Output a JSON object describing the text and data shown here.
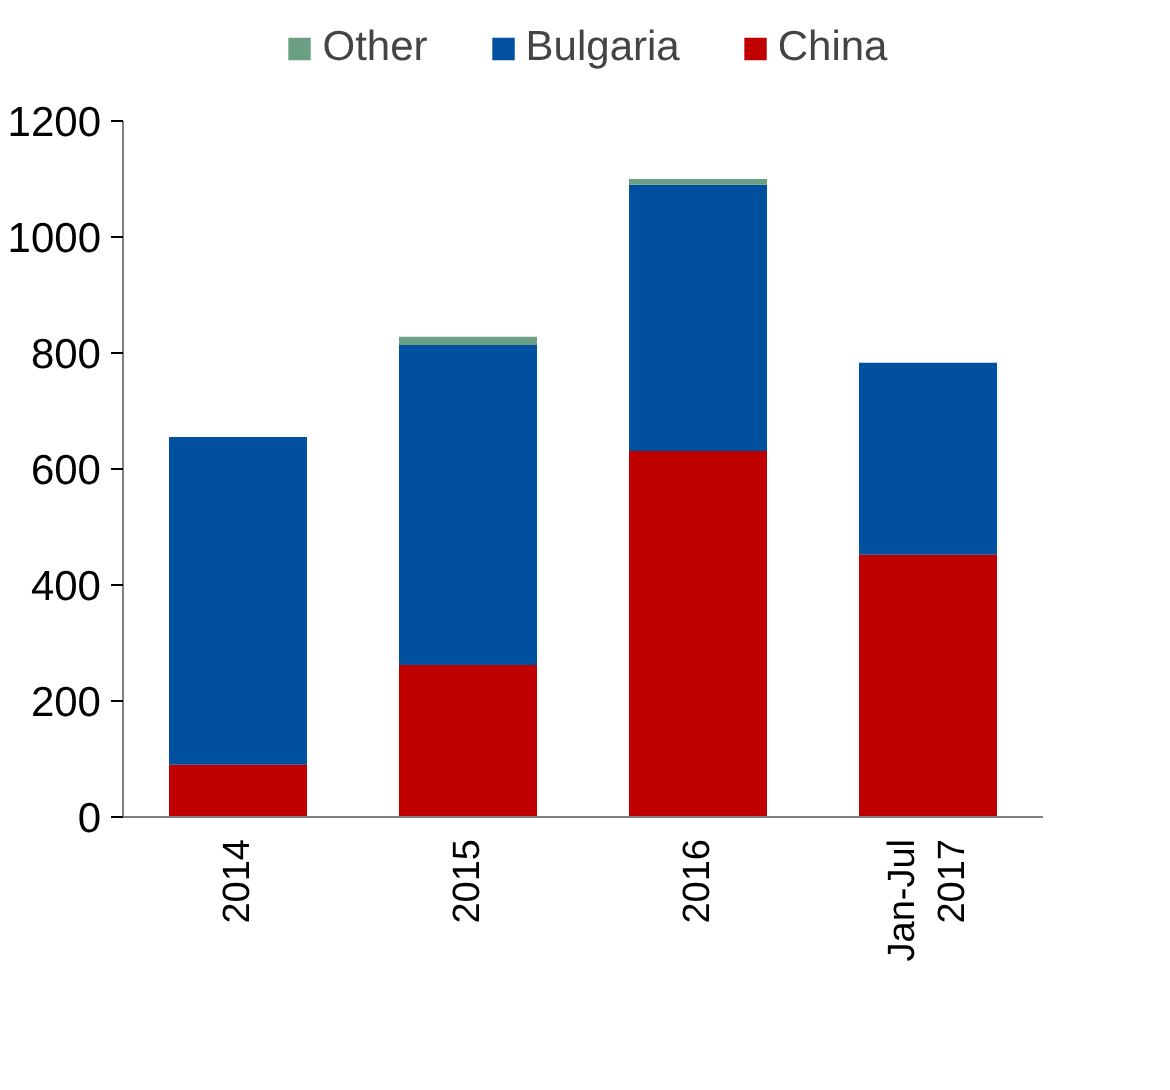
{
  "chart_data": {
    "type": "bar",
    "stacked": true,
    "categories": [
      "2014",
      "2015",
      "2016",
      "Jan-Jul 2017"
    ],
    "series": [
      {
        "name": "China",
        "color": "#c00000",
        "values": [
          90,
          262,
          631,
          452
        ]
      },
      {
        "name": "Bulgaria",
        "color": "#0050a0",
        "values": [
          565,
          552,
          459,
          331
        ]
      },
      {
        "name": "Other",
        "color": "#6a9f84",
        "values": [
          0,
          14,
          10,
          0
        ]
      }
    ],
    "ylim": [
      0,
      1200
    ],
    "yticks": [
      0,
      200,
      400,
      600,
      800,
      1000,
      1200
    ],
    "grid": false,
    "legend": "top"
  }
}
